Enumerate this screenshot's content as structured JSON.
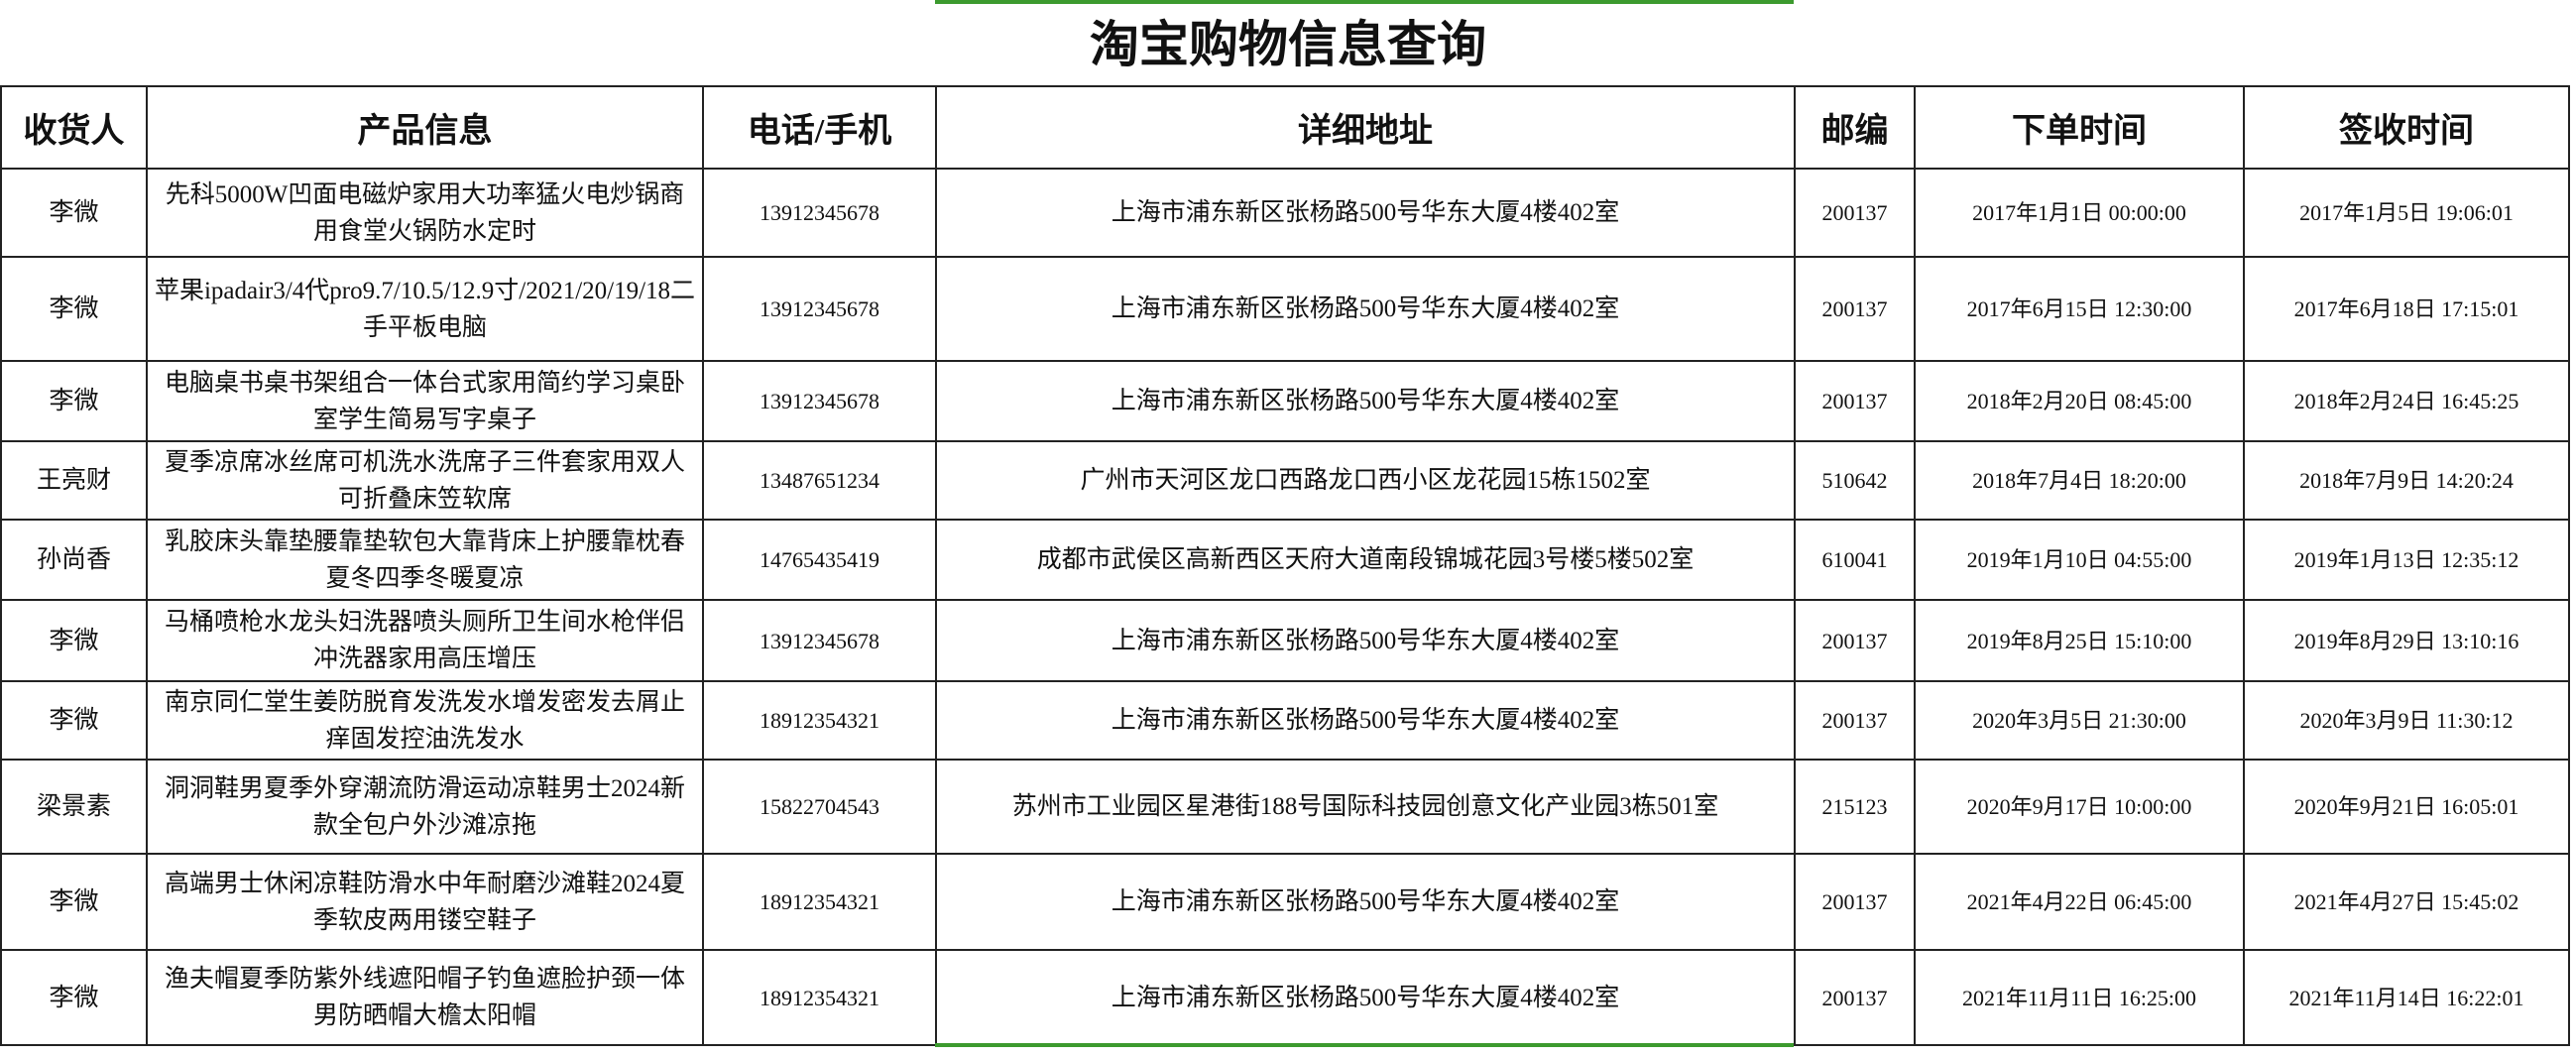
{
  "header": {
    "title": "淘宝购物信息查询"
  },
  "table": {
    "columns": [
      "收货人",
      "产品信息",
      "电话/手机",
      "详细地址",
      "邮编",
      "下单时间",
      "签收时间"
    ],
    "rows": [
      [
        "李微",
        "先科5000W凹面电磁炉家用大功率猛火电炒锅商用食堂火锅防水定时",
        "13912345678",
        "上海市浦东新区张杨路500号华东大厦4楼402室",
        "200137",
        "2017年1月1日 00:00:00",
        "2017年1月5日 19:06:01"
      ],
      [
        "李微",
        "苹果ipadair3/4代pro9.7/10.5/12.9寸/2021/20/19/18二手平板电脑",
        "13912345678",
        "上海市浦东新区张杨路500号华东大厦4楼402室",
        "200137",
        "2017年6月15日 12:30:00",
        "2017年6月18日 17:15:01"
      ],
      [
        "李微",
        "电脑桌书桌书架组合一体台式家用简约学习桌卧室学生简易写字桌子",
        "13912345678",
        "上海市浦东新区张杨路500号华东大厦4楼402室",
        "200137",
        "2018年2月20日 08:45:00",
        "2018年2月24日 16:45:25"
      ],
      [
        "王亮财",
        "夏季凉席冰丝席可机洗水洗席子三件套家用双人可折叠床笠软席",
        "13487651234",
        "广州市天河区龙口西路龙口西小区龙花园15栋1502室",
        "510642",
        "2018年7月4日 18:20:00",
        "2018年7月9日 14:20:24"
      ],
      [
        "孙尚香",
        "乳胶床头靠垫腰靠垫软包大靠背床上护腰靠枕春夏冬四季冬暖夏凉",
        "14765435419",
        "成都市武侯区高新西区天府大道南段锦城花园3号楼5楼502室",
        "610041",
        "2019年1月10日 04:55:00",
        "2019年1月13日 12:35:12"
      ],
      [
        "李微",
        "马桶喷枪水龙头妇洗器喷头厕所卫生间水枪伴侣冲洗器家用高压增压",
        "13912345678",
        "上海市浦东新区张杨路500号华东大厦4楼402室",
        "200137",
        "2019年8月25日 15:10:00",
        "2019年8月29日 13:10:16"
      ],
      [
        "李微",
        "南京同仁堂生姜防脱育发洗发水增发密发去屑止痒固发控油洗发水",
        "18912354321",
        "上海市浦东新区张杨路500号华东大厦4楼402室",
        "200137",
        "2020年3月5日 21:30:00",
        "2020年3月9日 11:30:12"
      ],
      [
        "梁景素",
        "洞洞鞋男夏季外穿潮流防滑运动凉鞋男士2024新款全包户外沙滩凉拖",
        "15822704543",
        "苏州市工业园区星港街188号国际科技园创意文化产业园3栋501室",
        "215123",
        "2020年9月17日 10:00:00",
        "2020年9月21日 16:05:01"
      ],
      [
        "李微",
        "高端男士休闲凉鞋防滑水中年耐磨沙滩鞋2024夏季软皮两用镂空鞋子",
        "18912354321",
        "上海市浦东新区张杨路500号华东大厦4楼402室",
        "200137",
        "2021年4月22日 06:45:00",
        "2021年4月27日 15:45:02"
      ],
      [
        "李微",
        "渔夫帽夏季防紫外线遮阳帽子钓鱼遮脸护颈一体男防晒帽大檐太阳帽",
        "18912354321",
        "上海市浦东新区张杨路500号华东大厦4楼402室",
        "200137",
        "2021年11月11日 16:25:00",
        "2021年11月14日 16:22:01"
      ]
    ]
  }
}
